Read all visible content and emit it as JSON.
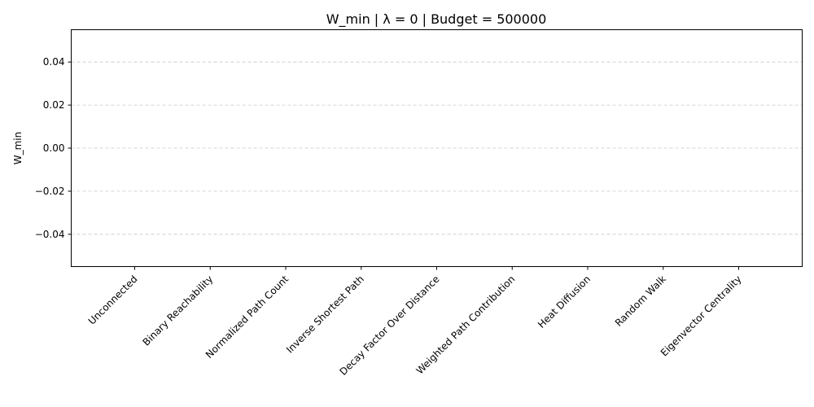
{
  "chart_data": {
    "type": "bar",
    "title": "W_min | λ = 0 | Budget = 500000",
    "xlabel": "",
    "ylabel": "W_min",
    "categories": [
      "Unconnected",
      "Binary Reachability",
      "Normalized Path Count",
      "Inverse Shortest Path",
      "Decay Factor Over Distance",
      "Weighted Path Contribution",
      "Heat Diffusion",
      "Random Walk",
      "Eigenvector Centrality"
    ],
    "values": [
      0,
      0,
      0,
      0,
      0,
      0,
      0,
      0,
      0
    ],
    "ylim": [
      -0.055,
      0.055
    ],
    "yticks": [
      "−0.04",
      "−0.02",
      "0.00",
      "0.02",
      "0.04"
    ],
    "ytick_values": [
      -0.04,
      -0.02,
      0.0,
      0.02,
      0.04
    ],
    "grid": "y-dashed"
  }
}
